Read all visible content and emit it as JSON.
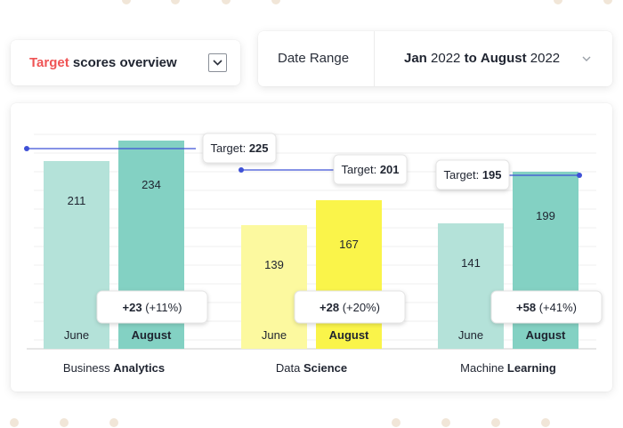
{
  "header": {
    "title_accent": "Target",
    "title_rest": " scores overview",
    "date_label": "Date Range",
    "date_from": "Jan",
    "date_from_year": "2022",
    "date_connector": "to",
    "date_to": "August",
    "date_to_year": "2022",
    "dropdown_icon": "chevron-down-icon"
  },
  "colors": {
    "accent": "#ef5455",
    "target_line": "#3f51d6",
    "june_palette": [
      "#b4e2d9",
      "#fcf99f",
      "#b4e2d9"
    ],
    "august_palette": [
      "#83d1c3",
      "#faf44a",
      "#83d1c3"
    ]
  },
  "chart_data": {
    "type": "bar",
    "ylim": [
      0,
      270
    ],
    "grid": true,
    "series_labels": [
      "June",
      "August"
    ],
    "groups": [
      {
        "name_plain": "Business ",
        "name_bold": "Analytics",
        "june": 211,
        "august": 234,
        "target": 225,
        "change_abs": "+23",
        "change_pct": "(+11%)"
      },
      {
        "name_plain": "Data ",
        "name_bold": "Science",
        "june": 139,
        "august": 167,
        "target": 201,
        "change_abs": "+28",
        "change_pct": "(+20%)"
      },
      {
        "name_plain": "Machine ",
        "name_bold": "Learning",
        "june": 141,
        "august": 199,
        "target": 195,
        "change_abs": "+58",
        "change_pct": "(+41%)"
      }
    ],
    "target_prefix": "Target: "
  }
}
